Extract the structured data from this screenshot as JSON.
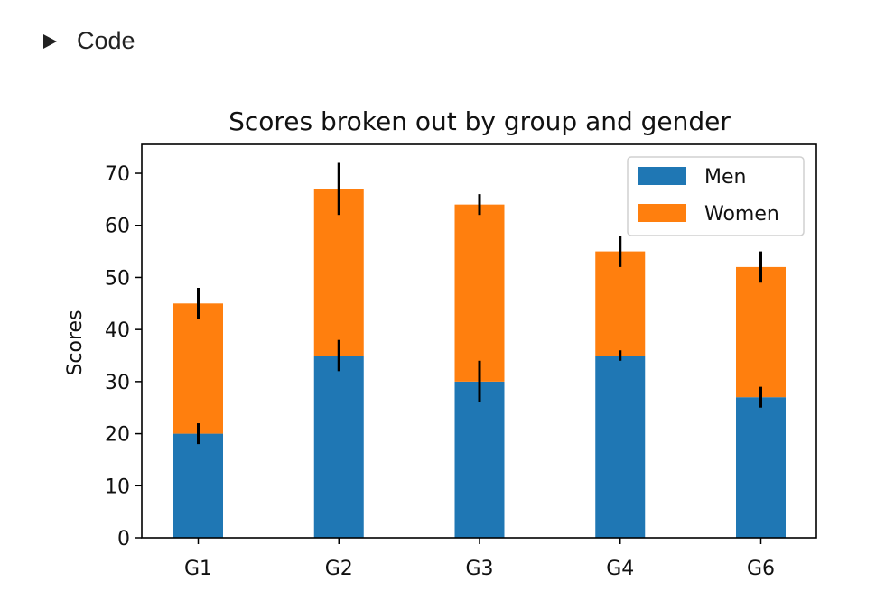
{
  "toggle": {
    "label": "Code",
    "icon": "disclosure-triangle-icon"
  },
  "chart_data": {
    "type": "bar",
    "stacked": true,
    "title": "Scores broken out by group and gender",
    "xlabel": "",
    "ylabel": "Scores",
    "categories": [
      "G1",
      "G2",
      "G3",
      "G4",
      "G6"
    ],
    "series": [
      {
        "name": "Men",
        "color": "#1f77b4",
        "values": [
          20,
          35,
          30,
          35,
          27
        ],
        "errors": [
          2,
          3,
          4,
          1,
          2
        ]
      },
      {
        "name": "Women",
        "color": "#ff7f0e",
        "values": [
          25,
          32,
          34,
          20,
          25
        ],
        "errors": [
          3,
          5,
          2,
          3,
          3
        ]
      }
    ],
    "ylim": [
      0,
      75
    ],
    "yticks": [
      0,
      10,
      20,
      30,
      40,
      50,
      60,
      70
    ],
    "legend": "top-right",
    "grid": false
  }
}
